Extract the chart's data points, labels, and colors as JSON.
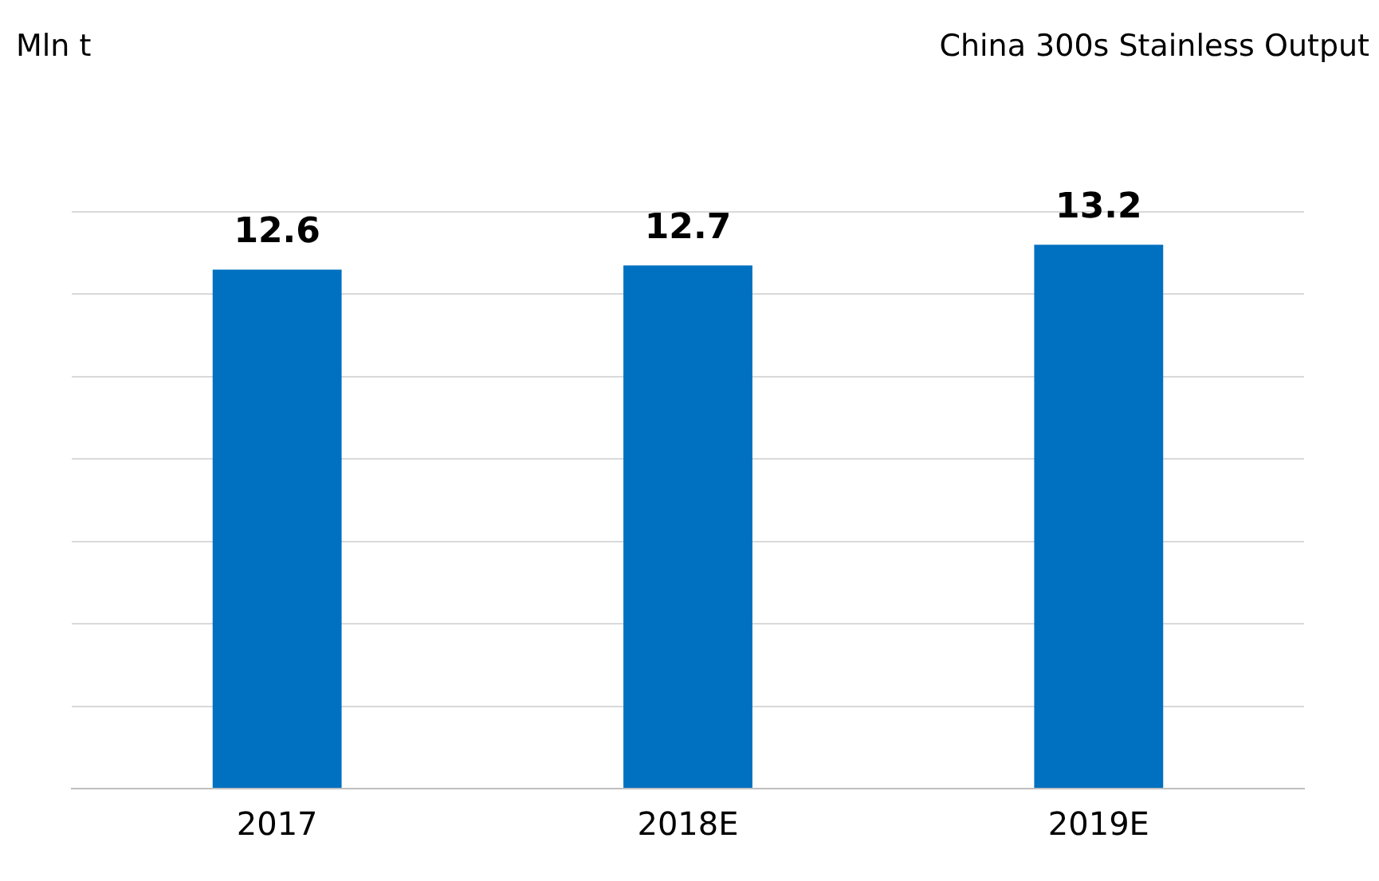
{
  "chart_data": {
    "type": "bar",
    "title": "China 300s Stainless Output",
    "ylabel": "Mln t",
    "categories": [
      "2017",
      "2018E",
      "2019E"
    ],
    "values": [
      12.6,
      12.7,
      13.2
    ],
    "color": "#0070c0",
    "ylim": [
      0,
      14
    ],
    "yticks": [
      {
        "value": 0,
        "label": null
      },
      {
        "value": 2,
        "label": null
      },
      {
        "value": 4,
        "label": null
      },
      {
        "value": 6,
        "label": null
      },
      {
        "value": 8,
        "label": null
      },
      {
        "value": 10,
        "label": null
      },
      {
        "value": 12,
        "label": null
      },
      {
        "value": 14,
        "label": null
      }
    ],
    "grid": "y",
    "data_labels": true,
    "tick_labels": "x",
    "legend": false
  }
}
